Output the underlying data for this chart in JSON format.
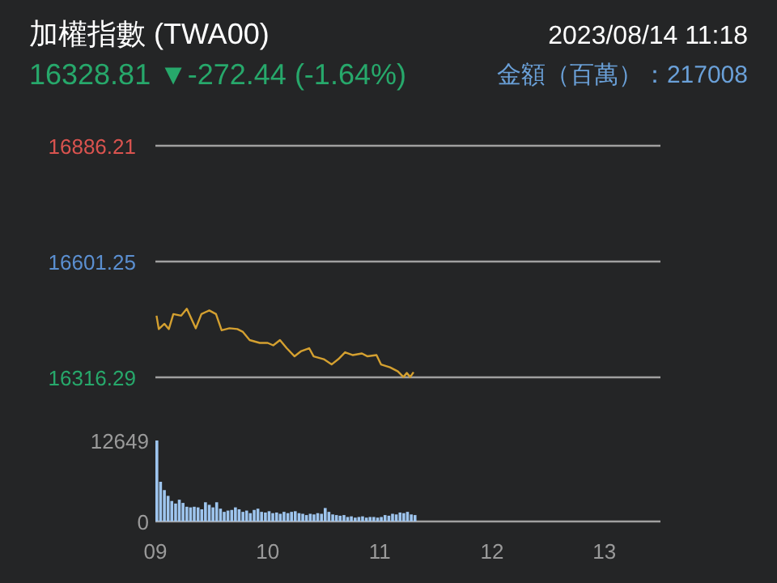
{
  "chart_data": [
    {
      "type": "line",
      "title": "加權指數 (TWA00)",
      "subtitle": "16328.81 ▼-272.44 (-1.64%)",
      "annotations": [
        "2023/08/14 11:18",
        "金額（百萬）：217008"
      ],
      "series": [
        {
          "color": "#d4a030",
          "x": [
            9.01,
            9.03,
            9.08,
            9.12,
            9.16,
            9.23,
            9.28,
            9.36,
            9.41,
            9.48,
            9.54,
            9.59,
            9.66,
            9.73,
            9.78,
            9.84,
            9.93,
            10.0,
            10.05,
            10.11,
            10.17,
            10.24,
            10.3,
            10.37,
            10.41,
            10.5,
            10.57,
            10.63,
            10.69,
            10.76,
            10.84,
            10.89,
            10.97,
            11.01,
            11.09,
            11.16,
            11.21,
            11.24,
            11.27,
            11.3
          ],
          "values": [
            16468,
            16435,
            16448,
            16435,
            16472,
            16468,
            16485,
            16437,
            16472,
            16481,
            16472,
            16432,
            16437,
            16435,
            16428,
            16408,
            16401,
            16401,
            16395,
            16408,
            16388,
            16368,
            16381,
            16388,
            16368,
            16361,
            16348,
            16361,
            16378,
            16371,
            16375,
            16368,
            16371,
            16348,
            16341,
            16331,
            16317,
            16327,
            16317,
            16329
          ]
        }
      ],
      "xlim": [
        9,
        13.5
      ],
      "ylim": [
        16316.29,
        16886.21
      ],
      "yticks": [
        16316.29,
        16601.25,
        16886.21
      ],
      "grid": "y",
      "tick_labels": "y"
    },
    {
      "type": "bar",
      "color": "#9ec5ee",
      "x": [
        9,
        9.033,
        9.067,
        9.1,
        9.133,
        9.167,
        9.2,
        9.233,
        9.267,
        9.3,
        9.333,
        9.367,
        9.4,
        9.433,
        9.467,
        9.5,
        9.533,
        9.567,
        9.6,
        9.633,
        9.667,
        9.7,
        9.733,
        9.767,
        9.8,
        9.833,
        9.867,
        9.9,
        9.933,
        9.967,
        10,
        10.033,
        10.067,
        10.1,
        10.133,
        10.167,
        10.2,
        10.233,
        10.267,
        10.3,
        10.333,
        10.367,
        10.4,
        10.433,
        10.467,
        10.5,
        10.533,
        10.567,
        10.6,
        10.633,
        10.667,
        10.7,
        10.733,
        10.767,
        10.8,
        10.833,
        10.867,
        10.9,
        10.933,
        10.967,
        11,
        11.033,
        11.067,
        11.1,
        11.133,
        11.167,
        11.2,
        11.233,
        11.267,
        11.3
      ],
      "values": [
        12649,
        6200,
        4900,
        4000,
        3200,
        2800,
        3400,
        2900,
        2300,
        2200,
        2300,
        2200,
        1900,
        3000,
        2600,
        2200,
        3000,
        2000,
        1500,
        1700,
        1800,
        2200,
        1900,
        1500,
        1700,
        1300,
        1800,
        2000,
        1500,
        1400,
        1600,
        1300,
        1400,
        1200,
        1500,
        1300,
        1500,
        1600,
        1300,
        1200,
        1000,
        1200,
        1100,
        1300,
        1200,
        2100,
        1500,
        1100,
        1000,
        900,
        1000,
        700,
        800,
        600,
        700,
        800,
        600,
        700,
        700,
        600,
        700,
        1000,
        900,
        1200,
        1100,
        1400,
        1300,
        1500,
        1100,
        1000
      ],
      "xlim": [
        9,
        13.5
      ],
      "ylim": [
        0,
        12649
      ],
      "yticks": [
        0,
        12649
      ],
      "xticks": [
        {
          "value": 9,
          "label": "09"
        },
        10,
        11,
        12,
        13
      ]
    }
  ]
}
